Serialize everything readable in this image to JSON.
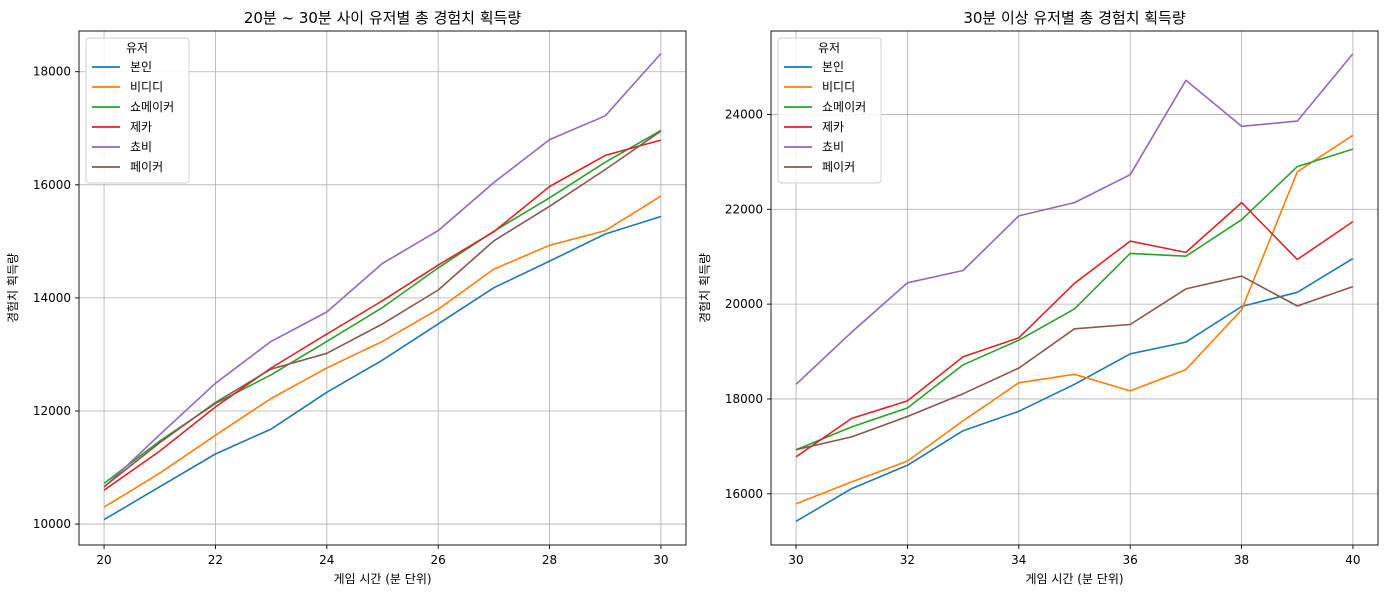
{
  "chart_data": [
    {
      "type": "line",
      "title": "20분 ~ 30분 사이 유저별 총 경험치 획득량",
      "xlabel": "게임 시간 (분 단위)",
      "ylabel": "경험치 획득량",
      "xlim": [
        19.55,
        30.45
      ],
      "ylim": [
        9630,
        18720
      ],
      "xticks": [
        20,
        22,
        24,
        26,
        28,
        30
      ],
      "yticks": [
        10000,
        12000,
        14000,
        16000,
        18000
      ],
      "grid": true,
      "legend": {
        "title": "유저",
        "placement": "top-left"
      },
      "x": [
        20,
        21,
        22,
        23,
        24,
        25,
        26,
        27,
        28,
        29,
        30
      ],
      "series": [
        {
          "name": "본인",
          "color": "#1f77b4",
          "values": [
            10080,
            10660,
            11240,
            11680,
            12330,
            12900,
            13540,
            14180,
            14650,
            15130,
            15440
          ]
        },
        {
          "name": "비디디",
          "color": "#ff7f0e",
          "values": [
            10300,
            10900,
            11570,
            12220,
            12760,
            13230,
            13800,
            14510,
            14930,
            15190,
            15800
          ]
        },
        {
          "name": "쇼메이커",
          "color": "#2ca02c",
          "values": [
            10720,
            11470,
            12130,
            12640,
            13230,
            13830,
            14530,
            15180,
            15770,
            16400,
            16960
          ]
        },
        {
          "name": "제카",
          "color": "#d62728",
          "values": [
            10600,
            11290,
            12070,
            12760,
            13360,
            13950,
            14580,
            15170,
            15970,
            16520,
            16790
          ]
        },
        {
          "name": "쵸비",
          "color": "#9467bd",
          "values": [
            10650,
            11580,
            12490,
            13230,
            13750,
            14610,
            15190,
            16040,
            16800,
            17220,
            18320
          ]
        },
        {
          "name": "페이커",
          "color": "#8c564b",
          "values": [
            10660,
            11440,
            12150,
            12740,
            13020,
            13540,
            14140,
            15010,
            15620,
            16270,
            16950
          ]
        }
      ]
    },
    {
      "type": "line",
      "title": "30분 이상 유저별 총 경험치 획득량",
      "xlabel": "게임 시간 (분 단위)",
      "ylabel": "경험치 획득량",
      "xlim": [
        29.55,
        40.45
      ],
      "ylim": [
        14920,
        25760
      ],
      "xticks": [
        30,
        32,
        34,
        36,
        38,
        40
      ],
      "yticks": [
        16000,
        18000,
        20000,
        22000,
        24000
      ],
      "grid": true,
      "legend": {
        "title": "유저",
        "placement": "top-left"
      },
      "x": [
        30,
        31,
        32,
        33,
        34,
        35,
        36,
        37,
        38,
        39,
        40
      ],
      "series": [
        {
          "name": "본인",
          "color": "#1f77b4",
          "values": [
            15420,
            16110,
            16600,
            17330,
            17740,
            18310,
            18950,
            19200,
            19950,
            20250,
            20960
          ]
        },
        {
          "name": "비디디",
          "color": "#ff7f0e",
          "values": [
            15790,
            16250,
            16690,
            17540,
            18340,
            18520,
            18170,
            18620,
            19880,
            22790,
            23560
          ]
        },
        {
          "name": "쇼메이커",
          "color": "#2ca02c",
          "values": [
            16930,
            17410,
            17810,
            18720,
            19240,
            19900,
            21070,
            21010,
            21780,
            22900,
            23270
          ]
        },
        {
          "name": "제카",
          "color": "#d62728",
          "values": [
            16780,
            17590,
            17960,
            18890,
            19290,
            20440,
            21330,
            21090,
            22140,
            20940,
            21740
          ]
        },
        {
          "name": "쵸비",
          "color": "#9467bd",
          "values": [
            18310,
            19410,
            20450,
            20710,
            21860,
            22140,
            22730,
            24720,
            23750,
            23860,
            25280
          ]
        },
        {
          "name": "페이커",
          "color": "#8c564b",
          "values": [
            16930,
            17200,
            17630,
            18110,
            18650,
            19480,
            19570,
            20320,
            20590,
            19960,
            20370
          ]
        }
      ]
    }
  ]
}
